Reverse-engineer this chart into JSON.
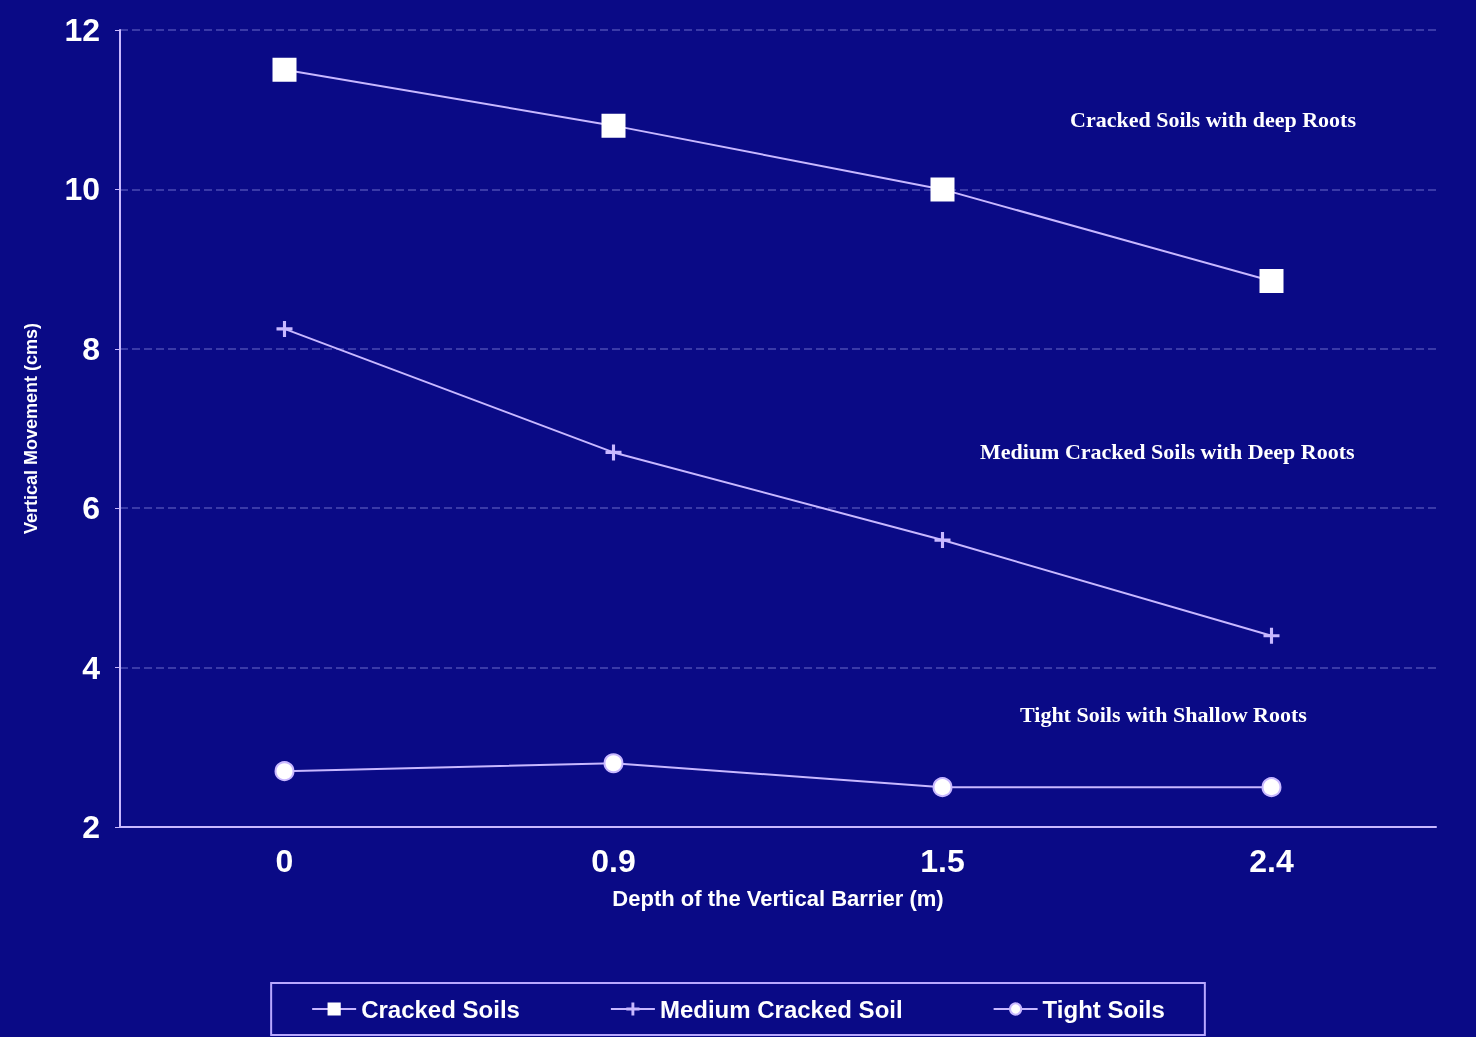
{
  "chart_data": {
    "type": "line",
    "xlabel": "Depth of the Vertical Barrier (m)",
    "ylabel": "Vertical Movement (cms)",
    "categories": [
      "0",
      "0.9",
      "1.5",
      "2.4"
    ],
    "series": [
      {
        "name": "Cracked Soils",
        "color": "#c8b8ff",
        "marker": "square",
        "values": [
          11.5,
          10.8,
          10.0,
          8.85
        ]
      },
      {
        "name": "Medium Cracked Soil",
        "color": "#c8b8ff",
        "marker": "cross",
        "values": [
          8.25,
          6.7,
          5.6,
          4.4
        ]
      },
      {
        "name": "Tight Soils",
        "color": "#c8b8ff",
        "marker": "circle",
        "values": [
          2.7,
          2.8,
          2.5,
          2.5
        ]
      }
    ],
    "ylim": [
      2,
      12
    ],
    "yticks": [
      2,
      4,
      6,
      8,
      10,
      12
    ],
    "grid": "y",
    "legend": "bottom",
    "annotations": [
      "Cracked Soils with deep Roots",
      "Medium Cracked Soils with Deep Roots",
      "Tight Soils with Shallow Roots"
    ]
  }
}
